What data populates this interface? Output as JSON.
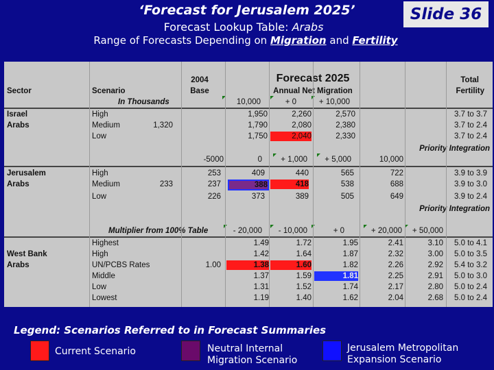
{
  "header": {
    "title": "‘Forecast for Jerusalem 2025’",
    "slide": "Slide 36",
    "subtitle1_pre": "Forecast Lookup Table:",
    "subtitle1_em": "Arabs",
    "subtitle2_pre": "Range of Forecasts Depending on",
    "subtitle2_a": "Migration",
    "subtitle2_mid": "and",
    "subtitle2_b": "Fertility"
  },
  "table": {
    "h_sector": "Sector",
    "h_scenario": "Scenario",
    "h_in_thousands": "In Thousands",
    "h_2004": "2004",
    "h_base": "Base",
    "h_forecast": "Forecast 2025",
    "h_annual": "Annual Net Migration",
    "h_total": "Total",
    "h_fertility": "Fertility",
    "mig1": [
      "10,000",
      "+ 0",
      "+ 10,000"
    ],
    "israel": {
      "sector1": "Israel",
      "sector2": "Arabs",
      "base": "1,320",
      "rows": [
        {
          "scen": "High",
          "v": [
            "1,950",
            "2,260",
            "2,570"
          ],
          "fert": "3.7 to 3.7"
        },
        {
          "scen": "Medium",
          "v": [
            "1,790",
            "2,080",
            "2,380"
          ],
          "fert": "3.7 to 2.4"
        },
        {
          "scen": "Low",
          "v": [
            "1,750",
            "2,040",
            "2,330"
          ],
          "fert": "3.7 to 2.4"
        }
      ]
    },
    "priority1": "Priority Integration",
    "mig2": [
      "-5000",
      "0",
      "+ 1,000",
      "+ 5,000",
      "10,000"
    ],
    "jerusalem": {
      "sector1": "Jerusalem",
      "sector2": "Arabs",
      "base": "233",
      "rows": [
        {
          "scen": "High",
          "v": [
            "253",
            "409",
            "440",
            "565",
            "722"
          ],
          "fert": "3.9 to 3.9"
        },
        {
          "scen": "Medium",
          "v": [
            "237",
            "388",
            "418",
            "538",
            "688"
          ],
          "fert": "3.9 to 3.0"
        },
        {
          "scen": "Low",
          "v": [
            "226",
            "373",
            "389",
            "505",
            "649"
          ],
          "fert": "3.9 to 2.4"
        }
      ]
    },
    "priority2": "Priority Integration",
    "multiplier": "Multiplier from 100% Table",
    "mig3": [
      "- 20,000",
      "- 10,000",
      "+ 0",
      "+ 20,000",
      "+ 50,000"
    ],
    "westbank": {
      "sector1": "West Bank",
      "sector2": "Arabs",
      "base": "1.00",
      "rows": [
        {
          "scen": "Highest",
          "v": [
            "1.49",
            "1.72",
            "1.95",
            "2.41",
            "3.10"
          ],
          "fert": "5.0 to 4.1"
        },
        {
          "scen": "High",
          "v": [
            "1.42",
            "1.64",
            "1.87",
            "2.32",
            "3.00"
          ],
          "fert": "5.0 to 3.5"
        },
        {
          "scen": "UN/PCBS Rates",
          "v": [
            "1.38",
            "1.60",
            "1.82",
            "2.26",
            "2.92"
          ],
          "fert": "5.4 to 3.2"
        },
        {
          "scen": "Middle",
          "v": [
            "1.37",
            "1.59",
            "1.81",
            "2.25",
            "2.91"
          ],
          "fert": "5.0 to 3.0"
        },
        {
          "scen": "Low",
          "v": [
            "1.31",
            "1.52",
            "1.74",
            "2.17",
            "2.80"
          ],
          "fert": "5.0 to 2.4"
        },
        {
          "scen": "Lowest",
          "v": [
            "1.19",
            "1.40",
            "1.62",
            "2.04",
            "2.68"
          ],
          "fert": "5.0 to 2.4"
        }
      ]
    }
  },
  "legend": {
    "title": "Legend",
    "title_rest": ": Scenarios Referred to in Forecast Summaries",
    "items": [
      {
        "line1": "Current Scenario",
        "line2": "",
        "color": "#ff1a1a"
      },
      {
        "line1": "Neutral Internal",
        "line2": "Migration Scenario",
        "color": "#6a0a6a"
      },
      {
        "line1": "Jerusalem Metropolitan",
        "line2": "Expansion Scenario",
        "color": "#1010ff"
      }
    ]
  }
}
